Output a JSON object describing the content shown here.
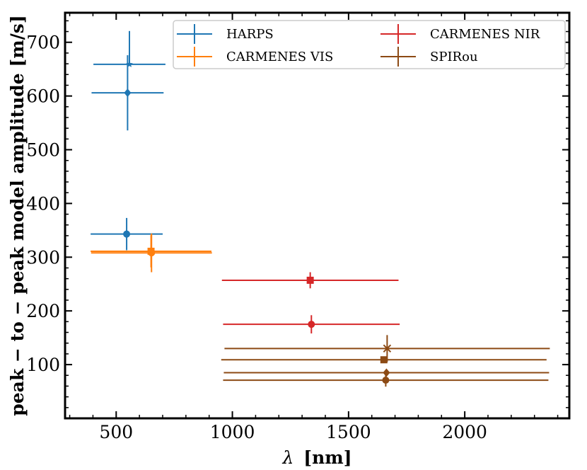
{
  "chart_data": {
    "type": "scatter",
    "xlabel_var": "λ",
    "xlabel_unit": "[nm]",
    "ylabel": "peak − to − peak model amplitude [m/s]",
    "xlim": [
      280,
      2450
    ],
    "ylim": [
      0,
      755
    ],
    "xticks": [
      500,
      1000,
      1500,
      2000
    ],
    "yticks": [
      100,
      200,
      300,
      400,
      500,
      600,
      700
    ],
    "x_minor_step": 100,
    "y_minor_step": 20,
    "series": [
      {
        "name": "HARPS",
        "color": "#1f77b4",
        "points": [
          {
            "x": 557,
            "y": 659,
            "xerr": [
              155,
              155
            ],
            "yerr": [
              0,
              62
            ],
            "marker": "star"
          },
          {
            "x": 549,
            "y": 606,
            "xerr": [
              155,
              155
            ],
            "yerr": [
              70,
              70
            ],
            "marker": "diamond"
          },
          {
            "x": 545,
            "y": 343,
            "xerr": [
              155,
              155
            ],
            "yerr": [
              30,
              30
            ],
            "marker": "circle"
          }
        ]
      },
      {
        "name": "CARMENES VIS",
        "color": "#ff7f0e",
        "points": [
          {
            "x": 650,
            "y": 311,
            "xerr": [
              260,
              260
            ],
            "yerr": [
              30,
              30
            ],
            "marker": "square"
          },
          {
            "x": 652,
            "y": 308,
            "xerr": [
              260,
              260
            ],
            "yerr": [
              36,
              36
            ],
            "marker": "circle"
          }
        ]
      },
      {
        "name": "CARMENES NIR",
        "color": "#d62728",
        "points": [
          {
            "x": 1335,
            "y": 257,
            "xerr": [
              380,
              380
            ],
            "yerr": [
              15,
              15
            ],
            "marker": "square"
          },
          {
            "x": 1340,
            "y": 175,
            "xerr": [
              380,
              380
            ],
            "yerr": [
              17,
              17
            ],
            "marker": "circle"
          }
        ]
      },
      {
        "name": "SPIRou",
        "color": "#8c4a14",
        "points": [
          {
            "x": 1666,
            "y": 130,
            "xerr": [
              700,
              700
            ],
            "yerr": [
              25,
              25
            ],
            "marker": "x"
          },
          {
            "x": 1652,
            "y": 109,
            "xerr": [
              700,
              700
            ],
            "yerr": [
              0,
              0
            ],
            "marker": "square"
          },
          {
            "x": 1663,
            "y": 85,
            "xerr": [
              700,
              700
            ],
            "yerr": [
              0,
              0
            ],
            "marker": "diamond"
          },
          {
            "x": 1660,
            "y": 71,
            "xerr": [
              700,
              700
            ],
            "yerr": [
              12,
              12
            ],
            "marker": "circle"
          }
        ]
      }
    ],
    "legend": {
      "position": "top-right",
      "columns": 2,
      "entries": [
        "HARPS",
        "CARMENES VIS",
        "CARMENES NIR",
        "SPIRou"
      ]
    }
  }
}
